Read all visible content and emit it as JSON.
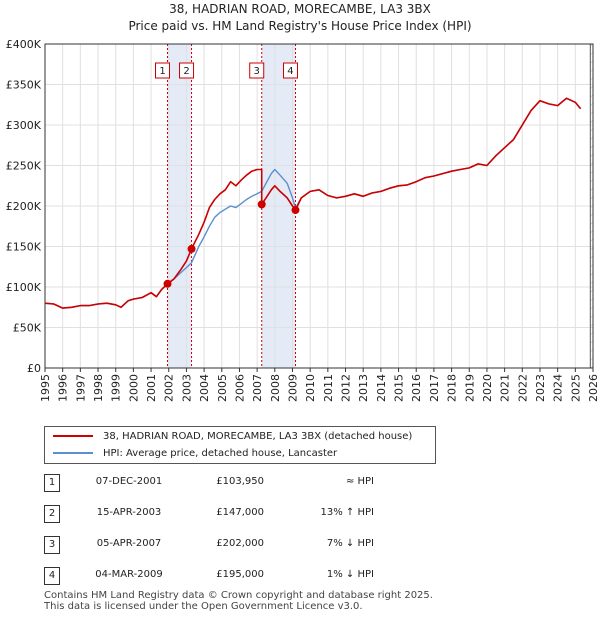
{
  "chart_data": {
    "type": "line",
    "title": "38, HADRIAN ROAD, MORECAMBE, LA3 3BX",
    "subtitle": "Price paid vs. HM Land Registry's House Price Index (HPI)",
    "xlim": [
      1995,
      2026
    ],
    "ylim": [
      0,
      400000
    ],
    "x_ticks": [
      "1995",
      "1996",
      "1997",
      "1998",
      "1999",
      "2000",
      "2001",
      "2002",
      "2003",
      "2004",
      "2005",
      "2006",
      "2007",
      "2008",
      "2009",
      "2010",
      "2011",
      "2012",
      "2013",
      "2014",
      "2015",
      "2016",
      "2017",
      "2018",
      "2019",
      "2020",
      "2021",
      "2022",
      "2023",
      "2024",
      "2025",
      "2026"
    ],
    "y_ticks": [
      {
        "value": 0,
        "label": "£0"
      },
      {
        "value": 50000,
        "label": "£50K"
      },
      {
        "value": 100000,
        "label": "£100K"
      },
      {
        "value": 150000,
        "label": "£150K"
      },
      {
        "value": 200000,
        "label": "£200K"
      },
      {
        "value": 250000,
        "label": "£250K"
      },
      {
        "value": 300000,
        "label": "£300K"
      },
      {
        "value": 350000,
        "label": "£350K"
      },
      {
        "value": 400000,
        "label": "£400K"
      }
    ],
    "grid": true,
    "shaded_periods": [
      [
        2001.93,
        2003.29
      ],
      [
        2007.26,
        2009.17
      ]
    ],
    "forecast_start": 2025.0,
    "series": [
      {
        "name": "38, HADRIAN ROAD, MORECAMBE, LA3 3BX (detached house)",
        "color": "#cc0000",
        "points": [
          [
            1995.0,
            80000
          ],
          [
            1995.5,
            79000
          ],
          [
            1996.0,
            74000
          ],
          [
            1996.5,
            75000
          ],
          [
            1997.0,
            77000
          ],
          [
            1997.5,
            77000
          ],
          [
            1998.0,
            79000
          ],
          [
            1998.5,
            80000
          ],
          [
            1999.0,
            78000
          ],
          [
            1999.3,
            75000
          ],
          [
            1999.7,
            83000
          ],
          [
            2000.0,
            85000
          ],
          [
            2000.5,
            87000
          ],
          [
            2001.0,
            93000
          ],
          [
            2001.3,
            88000
          ],
          [
            2001.6,
            97000
          ],
          [
            2001.93,
            103950
          ],
          [
            2002.3,
            110000
          ],
          [
            2002.7,
            122000
          ],
          [
            2003.0,
            132000
          ],
          [
            2003.29,
            147000
          ],
          [
            2003.7,
            165000
          ],
          [
            2004.0,
            180000
          ],
          [
            2004.3,
            198000
          ],
          [
            2004.6,
            208000
          ],
          [
            2004.9,
            215000
          ],
          [
            2005.2,
            220000
          ],
          [
            2005.5,
            230000
          ],
          [
            2005.8,
            225000
          ],
          [
            2006.1,
            232000
          ],
          [
            2006.4,
            238000
          ],
          [
            2006.7,
            243000
          ],
          [
            2007.0,
            245000
          ],
          [
            2007.26,
            245000
          ],
          [
            2007.26,
            202000
          ],
          [
            2007.5,
            210000
          ],
          [
            2007.8,
            220000
          ],
          [
            2008.0,
            225000
          ],
          [
            2008.3,
            218000
          ],
          [
            2008.7,
            210000
          ],
          [
            2009.0,
            200000
          ],
          [
            2009.17,
            195000
          ],
          [
            2009.5,
            210000
          ],
          [
            2010.0,
            218000
          ],
          [
            2010.5,
            220000
          ],
          [
            2011.0,
            213000
          ],
          [
            2011.5,
            210000
          ],
          [
            2012.0,
            212000
          ],
          [
            2012.5,
            215000
          ],
          [
            2013.0,
            212000
          ],
          [
            2013.5,
            216000
          ],
          [
            2014.0,
            218000
          ],
          [
            2014.5,
            222000
          ],
          [
            2015.0,
            225000
          ],
          [
            2015.5,
            226000
          ],
          [
            2016.0,
            230000
          ],
          [
            2016.5,
            235000
          ],
          [
            2017.0,
            237000
          ],
          [
            2017.5,
            240000
          ],
          [
            2018.0,
            243000
          ],
          [
            2018.5,
            245000
          ],
          [
            2019.0,
            247000
          ],
          [
            2019.5,
            252000
          ],
          [
            2020.0,
            250000
          ],
          [
            2020.5,
            262000
          ],
          [
            2021.0,
            272000
          ],
          [
            2021.5,
            282000
          ],
          [
            2022.0,
            300000
          ],
          [
            2022.5,
            318000
          ],
          [
            2023.0,
            330000
          ],
          [
            2023.5,
            326000
          ],
          [
            2024.0,
            324000
          ],
          [
            2024.5,
            333000
          ],
          [
            2025.0,
            328000
          ],
          [
            2025.3,
            320000
          ]
        ]
      },
      {
        "name": "HPI: Average price, detached house, Lancaster",
        "color": "#5a8fd0",
        "points": [
          [
            1995.0,
            80000
          ],
          [
            1995.5,
            79000
          ],
          [
            1996.0,
            74000
          ],
          [
            1996.5,
            75000
          ],
          [
            1997.0,
            77000
          ],
          [
            1997.5,
            77000
          ],
          [
            1998.0,
            79000
          ],
          [
            1998.5,
            80000
          ],
          [
            1999.0,
            78000
          ],
          [
            1999.3,
            75000
          ],
          [
            1999.7,
            83000
          ],
          [
            2000.0,
            85000
          ],
          [
            2000.5,
            87000
          ],
          [
            2001.0,
            93000
          ],
          [
            2001.3,
            88000
          ],
          [
            2001.6,
            97000
          ],
          [
            2001.93,
            103950
          ],
          [
            2002.3,
            110000
          ],
          [
            2002.7,
            118000
          ],
          [
            2003.0,
            124000
          ],
          [
            2003.29,
            130000
          ],
          [
            2003.7,
            150000
          ],
          [
            2004.0,
            162000
          ],
          [
            2004.3,
            175000
          ],
          [
            2004.6,
            186000
          ],
          [
            2004.9,
            192000
          ],
          [
            2005.2,
            196000
          ],
          [
            2005.5,
            200000
          ],
          [
            2005.8,
            198000
          ],
          [
            2006.1,
            203000
          ],
          [
            2006.4,
            208000
          ],
          [
            2006.7,
            212000
          ],
          [
            2007.0,
            215000
          ],
          [
            2007.26,
            218000
          ],
          [
            2007.5,
            228000
          ],
          [
            2007.8,
            240000
          ],
          [
            2008.0,
            245000
          ],
          [
            2008.3,
            238000
          ],
          [
            2008.7,
            228000
          ],
          [
            2009.0,
            210000
          ],
          [
            2009.17,
            197000
          ],
          [
            2009.5,
            210000
          ],
          [
            2010.0,
            218000
          ],
          [
            2010.5,
            220000
          ],
          [
            2011.0,
            213000
          ],
          [
            2011.5,
            210000
          ],
          [
            2012.0,
            212000
          ],
          [
            2012.5,
            215000
          ],
          [
            2013.0,
            212000
          ],
          [
            2013.5,
            216000
          ],
          [
            2014.0,
            218000
          ],
          [
            2014.5,
            222000
          ],
          [
            2015.0,
            225000
          ],
          [
            2015.5,
            226000
          ],
          [
            2016.0,
            230000
          ],
          [
            2016.5,
            235000
          ],
          [
            2017.0,
            237000
          ],
          [
            2017.5,
            240000
          ],
          [
            2018.0,
            243000
          ],
          [
            2018.5,
            245000
          ],
          [
            2019.0,
            247000
          ],
          [
            2019.5,
            252000
          ],
          [
            2020.0,
            250000
          ],
          [
            2020.5,
            262000
          ],
          [
            2021.0,
            272000
          ],
          [
            2021.5,
            282000
          ],
          [
            2022.0,
            300000
          ],
          [
            2022.5,
            318000
          ],
          [
            2023.0,
            330000
          ],
          [
            2023.5,
            326000
          ],
          [
            2024.0,
            324000
          ],
          [
            2024.5,
            333000
          ],
          [
            2025.0,
            328000
          ],
          [
            2025.3,
            320000
          ]
        ]
      }
    ],
    "transactions": [
      {
        "id": "1",
        "x": 2001.93,
        "price": 103950
      },
      {
        "id": "2",
        "x": 2003.29,
        "price": 147000
      },
      {
        "id": "3",
        "x": 2007.26,
        "price": 202000
      },
      {
        "id": "4",
        "x": 2009.17,
        "price": 195000
      }
    ]
  },
  "legend": {
    "property_label": "38, HADRIAN ROAD, MORECAMBE, LA3 3BX (detached house)",
    "hpi_label": "HPI: Average price, detached house, Lancaster"
  },
  "table": [
    {
      "num": "1",
      "date": "07-DEC-2001",
      "price": "£103,950",
      "hpi": "≈ HPI"
    },
    {
      "num": "2",
      "date": "15-APR-2003",
      "price": "£147,000",
      "hpi": "13% ↑ HPI"
    },
    {
      "num": "3",
      "date": "05-APR-2007",
      "price": "£202,000",
      "hpi": "7% ↓ HPI"
    },
    {
      "num": "4",
      "date": "04-MAR-2009",
      "price": "£195,000",
      "hpi": "1% ↓ HPI"
    }
  ],
  "footer": {
    "line1": "Contains HM Land Registry data © Crown copyright and database right 2025.",
    "line2": "This data is licensed under the Open Government Licence v3.0."
  },
  "colors": {
    "property": "#cc0000",
    "hpi": "#5a8fd0",
    "shade": "#dde6f5",
    "grid": "#e0e0e0"
  }
}
